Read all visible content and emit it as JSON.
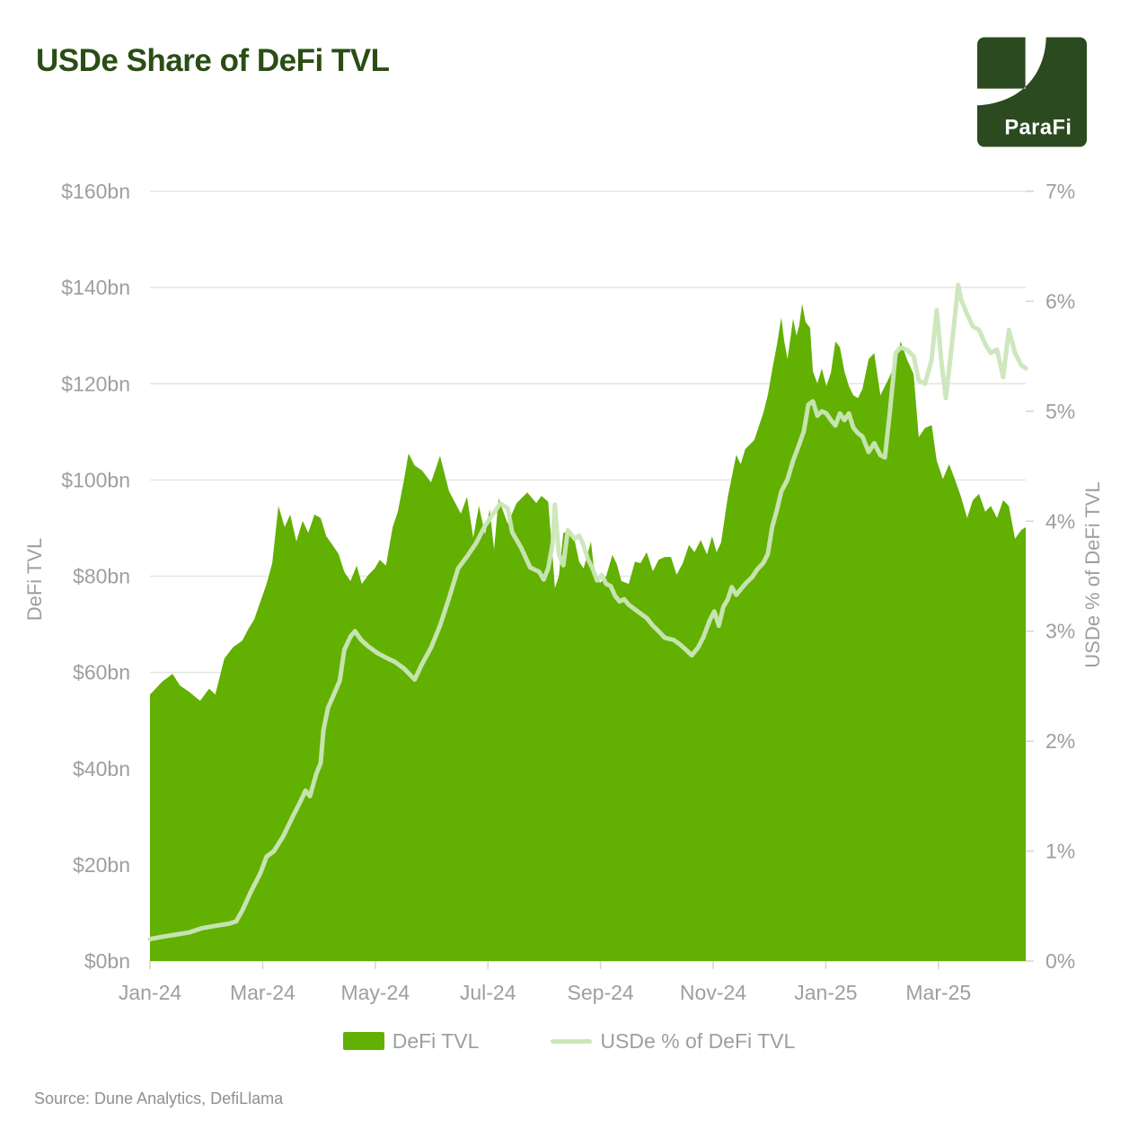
{
  "title": "USDe Share of DeFi TVL",
  "logo": {
    "text": "ParaFi",
    "bg_color": "#2C4A20",
    "fg_color": "#FFFFFF"
  },
  "colors": {
    "area": "#62B001",
    "line": "#CBE6B9",
    "title": "#2A4D14",
    "axis_text": "#9BA19B",
    "grid": "#E4E6E2",
    "tick": "#D5D8D3",
    "source_text": "#8C928C"
  },
  "legend": [
    {
      "label": "DeFi TVL",
      "type": "area"
    },
    {
      "label": "USDe % of DeFi TVL",
      "type": "line"
    }
  ],
  "source": "Source: Dune Analytics, DefiLlama",
  "chart_data": {
    "type": "combo (area + line, dual y-axis)",
    "x_axis": {
      "unit": "months since Jan-2024",
      "range": [
        0,
        15.55
      ],
      "tick_positions": [
        0,
        2,
        4,
        6,
        8,
        10,
        12,
        14
      ],
      "tick_labels": [
        "Jan-24",
        "Mar-24",
        "May-24",
        "Jul-24",
        "Sep-24",
        "Nov-24",
        "Jan-25",
        "Mar-25"
      ]
    },
    "left_axis": {
      "label": "DeFi TVL",
      "range": [
        0,
        160
      ],
      "tick_values": [
        0,
        20,
        40,
        60,
        80,
        100,
        120,
        140,
        160
      ],
      "tick_labels": [
        "$0bn",
        "$20bn",
        "$40bn",
        "$60bn",
        "$80bn",
        "$100bn",
        "$120bn",
        "$140bn",
        "$160bn"
      ],
      "grid": true
    },
    "right_axis": {
      "label": "USDe % of DeFi TVL",
      "range": [
        0,
        7
      ],
      "tick_values": [
        0,
        1,
        2,
        3,
        4,
        5,
        6,
        7
      ],
      "tick_labels": [
        "0%",
        "1%",
        "2%",
        "3%",
        "4%",
        "5%",
        "6%",
        "7%"
      ],
      "grid": false
    },
    "series": [
      {
        "name": "DeFi TVL",
        "type": "area",
        "y_axis": "left",
        "unit": "$bn",
        "points": [
          [
            0,
            55.4
          ],
          [
            0.13,
            57
          ],
          [
            0.21,
            58
          ],
          [
            0.4,
            59.7
          ],
          [
            0.53,
            57.3
          ],
          [
            0.69,
            56
          ],
          [
            0.89,
            54.1
          ],
          [
            1.05,
            56.6
          ],
          [
            1.16,
            55.4
          ],
          [
            1.32,
            62.9
          ],
          [
            1.48,
            65.3
          ],
          [
            1.64,
            66.6
          ],
          [
            1.75,
            69.1
          ],
          [
            1.85,
            71
          ],
          [
            1.96,
            74.7
          ],
          [
            2.07,
            78.4
          ],
          [
            2.17,
            82.7
          ],
          [
            2.28,
            94.6
          ],
          [
            2.39,
            90.2
          ],
          [
            2.49,
            92.8
          ],
          [
            2.6,
            87.2
          ],
          [
            2.71,
            91.5
          ],
          [
            2.81,
            89
          ],
          [
            2.92,
            92.8
          ],
          [
            3.03,
            92.1
          ],
          [
            3.13,
            88.3
          ],
          [
            3.24,
            86.5
          ],
          [
            3.35,
            84.6
          ],
          [
            3.45,
            80.9
          ],
          [
            3.56,
            79
          ],
          [
            3.67,
            82.2
          ],
          [
            3.76,
            78.4
          ],
          [
            3.88,
            80.3
          ],
          [
            3.99,
            81.6
          ],
          [
            4.08,
            83.4
          ],
          [
            4.19,
            82.2
          ],
          [
            4.31,
            90.2
          ],
          [
            4.4,
            93.4
          ],
          [
            4.51,
            100
          ],
          [
            4.59,
            105.5
          ],
          [
            4.7,
            103
          ],
          [
            4.83,
            102
          ],
          [
            4.99,
            99.5
          ],
          [
            5.15,
            105
          ],
          [
            5.31,
            97.7
          ],
          [
            5.52,
            93
          ],
          [
            5.63,
            96.5
          ],
          [
            5.74,
            88
          ],
          [
            5.84,
            94.6
          ],
          [
            5.95,
            88.7
          ],
          [
            6.03,
            93.9
          ],
          [
            6.11,
            85.5
          ],
          [
            6.19,
            96.2
          ],
          [
            6.35,
            90.9
          ],
          [
            6.51,
            95.2
          ],
          [
            6.7,
            97.4
          ],
          [
            6.86,
            95.2
          ],
          [
            6.95,
            96.7
          ],
          [
            7.07,
            95.5
          ],
          [
            7.15,
            84
          ],
          [
            7.19,
            77.5
          ],
          [
            7.26,
            80
          ],
          [
            7.34,
            89
          ],
          [
            7.45,
            89.3
          ],
          [
            7.54,
            87.4
          ],
          [
            7.62,
            83
          ],
          [
            7.7,
            81.6
          ],
          [
            7.83,
            87.2
          ],
          [
            7.89,
            80.9
          ],
          [
            7.99,
            78.6
          ],
          [
            8.1,
            80
          ],
          [
            8.21,
            84.4
          ],
          [
            8.29,
            82.5
          ],
          [
            8.37,
            79
          ],
          [
            8.5,
            78.4
          ],
          [
            8.61,
            83
          ],
          [
            8.71,
            82.7
          ],
          [
            8.82,
            85
          ],
          [
            8.93,
            81
          ],
          [
            9.03,
            83.4
          ],
          [
            9.14,
            84
          ],
          [
            9.25,
            84
          ],
          [
            9.35,
            80.3
          ],
          [
            9.46,
            82.7
          ],
          [
            9.57,
            86.5
          ],
          [
            9.67,
            85
          ],
          [
            9.78,
            87.5
          ],
          [
            9.89,
            84.5
          ],
          [
            9.98,
            88.3
          ],
          [
            10.06,
            85
          ],
          [
            10.14,
            87
          ],
          [
            10.26,
            96.5
          ],
          [
            10.41,
            105.2
          ],
          [
            10.49,
            103.3
          ],
          [
            10.57,
            106.4
          ],
          [
            10.73,
            108.3
          ],
          [
            10.89,
            113.9
          ],
          [
            10.97,
            117.6
          ],
          [
            11.05,
            123
          ],
          [
            11.13,
            128
          ],
          [
            11.21,
            133.8
          ],
          [
            11.26,
            129
          ],
          [
            11.32,
            125.1
          ],
          [
            11.42,
            133.5
          ],
          [
            11.48,
            130
          ],
          [
            11.53,
            132.2
          ],
          [
            11.58,
            136.6
          ],
          [
            11.64,
            132.9
          ],
          [
            11.72,
            131.6
          ],
          [
            11.77,
            122.6
          ],
          [
            11.85,
            120.1
          ],
          [
            11.93,
            123.2
          ],
          [
            12.01,
            119.5
          ],
          [
            12.09,
            122.3
          ],
          [
            12.17,
            128.8
          ],
          [
            12.25,
            127.6
          ],
          [
            12.33,
            122.6
          ],
          [
            12.41,
            119.5
          ],
          [
            12.49,
            117.6
          ],
          [
            12.57,
            117
          ],
          [
            12.65,
            118.9
          ],
          [
            12.76,
            125.1
          ],
          [
            12.86,
            126.4
          ],
          [
            12.97,
            117.6
          ],
          [
            13.13,
            121.4
          ],
          [
            13.24,
            124.5
          ],
          [
            13.33,
            128.8
          ],
          [
            13.44,
            125.1
          ],
          [
            13.56,
            122
          ],
          [
            13.65,
            108.9
          ],
          [
            13.76,
            110.8
          ],
          [
            13.88,
            111.4
          ],
          [
            13.97,
            104
          ],
          [
            14.08,
            100.2
          ],
          [
            14.19,
            103.3
          ],
          [
            14.29,
            100.2
          ],
          [
            14.4,
            96.5
          ],
          [
            14.51,
            92.1
          ],
          [
            14.61,
            95.8
          ],
          [
            14.72,
            97.1
          ],
          [
            14.83,
            93.4
          ],
          [
            14.93,
            94.6
          ],
          [
            15.04,
            92.1
          ],
          [
            15.15,
            95.8
          ],
          [
            15.25,
            94.6
          ],
          [
            15.36,
            87.8
          ],
          [
            15.47,
            89.6
          ],
          [
            15.55,
            90.2
          ]
        ]
      },
      {
        "name": "USDe % of DeFi TVL",
        "type": "line",
        "y_axis": "right",
        "unit": "%",
        "points": [
          [
            0,
            0.2
          ],
          [
            0.21,
            0.22
          ],
          [
            0.45,
            0.24
          ],
          [
            0.69,
            0.26
          ],
          [
            0.93,
            0.3
          ],
          [
            1.16,
            0.32
          ],
          [
            1.4,
            0.34
          ],
          [
            1.53,
            0.36
          ],
          [
            1.64,
            0.46
          ],
          [
            1.8,
            0.64
          ],
          [
            1.96,
            0.8
          ],
          [
            2.07,
            0.95
          ],
          [
            2.2,
            1
          ],
          [
            2.36,
            1.13
          ],
          [
            2.55,
            1.33
          ],
          [
            2.68,
            1.46
          ],
          [
            2.76,
            1.55
          ],
          [
            2.84,
            1.5
          ],
          [
            2.95,
            1.7
          ],
          [
            3.03,
            1.8
          ],
          [
            3.08,
            2.1
          ],
          [
            3.16,
            2.3
          ],
          [
            3.27,
            2.43
          ],
          [
            3.37,
            2.55
          ],
          [
            3.45,
            2.83
          ],
          [
            3.56,
            2.95
          ],
          [
            3.64,
            3
          ],
          [
            3.75,
            2.92
          ],
          [
            3.88,
            2.86
          ],
          [
            4.04,
            2.8
          ],
          [
            4.19,
            2.76
          ],
          [
            4.35,
            2.72
          ],
          [
            4.51,
            2.66
          ],
          [
            4.7,
            2.56
          ],
          [
            4.83,
            2.7
          ],
          [
            4.99,
            2.85
          ],
          [
            5.15,
            3.05
          ],
          [
            5.31,
            3.3
          ],
          [
            5.47,
            3.57
          ],
          [
            5.63,
            3.68
          ],
          [
            5.79,
            3.8
          ],
          [
            5.95,
            3.96
          ],
          [
            6.11,
            4.08
          ],
          [
            6.22,
            4.16
          ],
          [
            6.35,
            4.12
          ],
          [
            6.43,
            3.9
          ],
          [
            6.59,
            3.76
          ],
          [
            6.75,
            3.58
          ],
          [
            6.91,
            3.54
          ],
          [
            6.99,
            3.47
          ],
          [
            7.07,
            3.57
          ],
          [
            7.15,
            3.8
          ],
          [
            7.19,
            4.15
          ],
          [
            7.26,
            3.7
          ],
          [
            7.34,
            3.6
          ],
          [
            7.42,
            3.92
          ],
          [
            7.54,
            3.84
          ],
          [
            7.62,
            3.87
          ],
          [
            7.7,
            3.78
          ],
          [
            7.78,
            3.65
          ],
          [
            7.86,
            3.57
          ],
          [
            7.94,
            3.46
          ],
          [
            8.02,
            3.51
          ],
          [
            8.1,
            3.43
          ],
          [
            8.18,
            3.41
          ],
          [
            8.26,
            3.32
          ],
          [
            8.34,
            3.27
          ],
          [
            8.42,
            3.29
          ],
          [
            8.5,
            3.24
          ],
          [
            8.66,
            3.18
          ],
          [
            8.82,
            3.12
          ],
          [
            8.93,
            3.05
          ],
          [
            9.03,
            3
          ],
          [
            9.14,
            2.94
          ],
          [
            9.3,
            2.92
          ],
          [
            9.41,
            2.88
          ],
          [
            9.54,
            2.82
          ],
          [
            9.62,
            2.78
          ],
          [
            9.73,
            2.85
          ],
          [
            9.83,
            2.95
          ],
          [
            9.94,
            3.1
          ],
          [
            10.02,
            3.18
          ],
          [
            10.1,
            3.05
          ],
          [
            10.18,
            3.22
          ],
          [
            10.26,
            3.29
          ],
          [
            10.33,
            3.4
          ],
          [
            10.41,
            3.33
          ],
          [
            10.49,
            3.38
          ],
          [
            10.57,
            3.43
          ],
          [
            10.69,
            3.49
          ],
          [
            10.78,
            3.56
          ],
          [
            10.89,
            3.62
          ],
          [
            10.97,
            3.7
          ],
          [
            11.05,
            3.95
          ],
          [
            11.13,
            4.1
          ],
          [
            11.21,
            4.27
          ],
          [
            11.32,
            4.38
          ],
          [
            11.42,
            4.55
          ],
          [
            11.53,
            4.7
          ],
          [
            11.61,
            4.82
          ],
          [
            11.69,
            5.06
          ],
          [
            11.77,
            5.09
          ],
          [
            11.85,
            4.96
          ],
          [
            11.93,
            5
          ],
          [
            12.01,
            4.98
          ],
          [
            12.09,
            4.92
          ],
          [
            12.17,
            4.87
          ],
          [
            12.25,
            4.98
          ],
          [
            12.33,
            4.92
          ],
          [
            12.41,
            4.98
          ],
          [
            12.49,
            4.85
          ],
          [
            12.57,
            4.8
          ],
          [
            12.65,
            4.77
          ],
          [
            12.76,
            4.63
          ],
          [
            12.86,
            4.71
          ],
          [
            12.97,
            4.6
          ],
          [
            13.05,
            4.58
          ],
          [
            13.13,
            4.96
          ],
          [
            13.24,
            5.53
          ],
          [
            13.33,
            5.58
          ],
          [
            13.44,
            5.56
          ],
          [
            13.56,
            5.5
          ],
          [
            13.65,
            5.28
          ],
          [
            13.76,
            5.25
          ],
          [
            13.88,
            5.47
          ],
          [
            13.97,
            5.92
          ],
          [
            14.05,
            5.47
          ],
          [
            14.13,
            5.12
          ],
          [
            14.24,
            5.61
          ],
          [
            14.35,
            6.15
          ],
          [
            14.4,
            6.02
          ],
          [
            14.51,
            5.88
          ],
          [
            14.61,
            5.77
          ],
          [
            14.72,
            5.74
          ],
          [
            14.83,
            5.61
          ],
          [
            14.93,
            5.53
          ],
          [
            15.04,
            5.56
          ],
          [
            15.15,
            5.31
          ],
          [
            15.25,
            5.74
          ],
          [
            15.36,
            5.53
          ],
          [
            15.47,
            5.42
          ],
          [
            15.55,
            5.39
          ]
        ]
      }
    ]
  }
}
